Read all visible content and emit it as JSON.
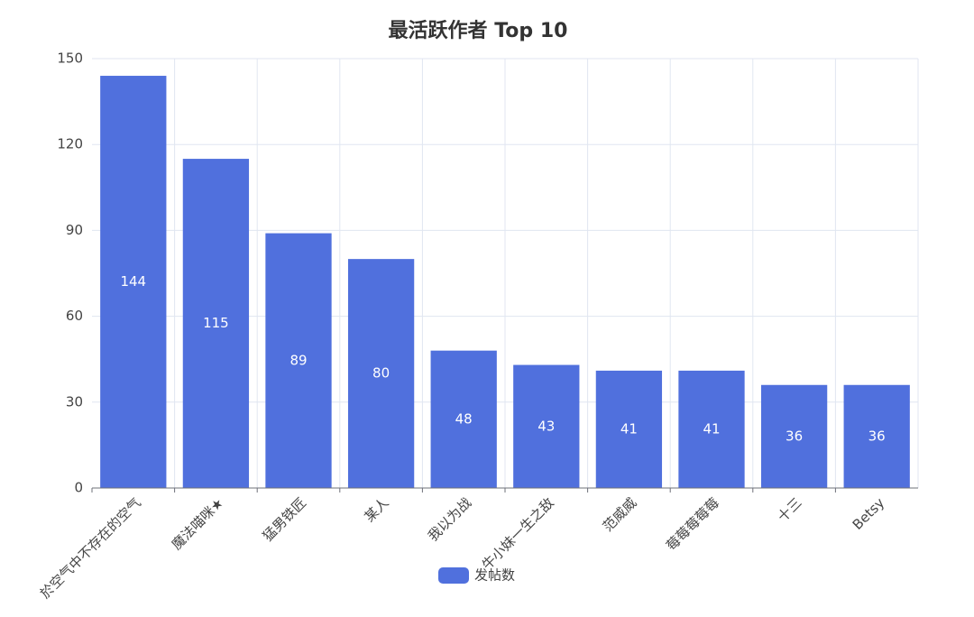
{
  "chart_data": {
    "type": "bar",
    "title": "最活跃作者 Top 10",
    "categories": [
      "於空气中不存在的空气",
      "魔法喵咪★",
      "猛男铁匠",
      "某人",
      "我以为战",
      "牛小妹一生之敌",
      "范威威",
      "莓莓莓莓莓",
      "十三",
      "Betsy"
    ],
    "series": [
      {
        "name": "发帖数",
        "color": "#5070dd",
        "values": [
          144,
          115,
          89,
          80,
          48,
          43,
          41,
          41,
          36,
          36
        ]
      }
    ],
    "ylim": [
      0,
      150
    ],
    "yticks": [
      0,
      30,
      60,
      90,
      120,
      150
    ],
    "grid": true,
    "legend": "bottom"
  }
}
